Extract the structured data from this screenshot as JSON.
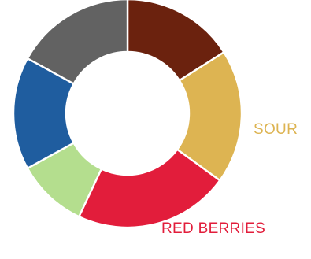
{
  "chart_data": {
    "type": "pie",
    "donut": true,
    "slices": [
      {
        "value": 16,
        "color": "#6b220e",
        "label": ""
      },
      {
        "value": 19,
        "color": "#ddb452",
        "label": "SOUR"
      },
      {
        "value": 22,
        "color": "#e21d3b",
        "label": "RED BERRIES"
      },
      {
        "value": 10,
        "color": "#b4de8e",
        "label": ""
      },
      {
        "value": 16,
        "color": "#1f5d9f",
        "label": ""
      },
      {
        "value": 17,
        "color": "#626262",
        "label": ""
      }
    ]
  }
}
